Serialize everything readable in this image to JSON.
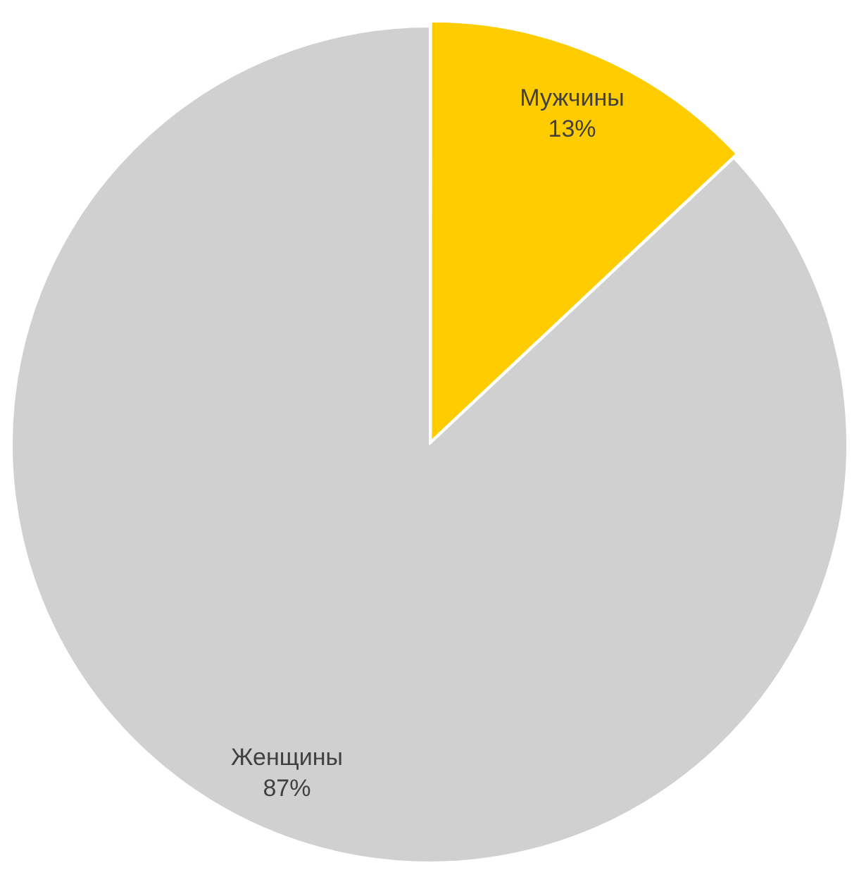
{
  "chart_data": {
    "type": "pie",
    "categories": [
      "Мужчины",
      "Женщины"
    ],
    "values": [
      13,
      87
    ],
    "value_labels": [
      "13%",
      "87%"
    ],
    "colors": [
      "#ffcc00",
      "#d0d0d0"
    ],
    "legend": false
  }
}
